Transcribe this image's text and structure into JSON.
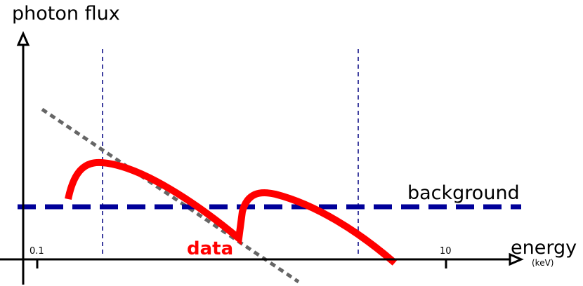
{
  "axes": {
    "y_label": "photon flux",
    "x_label": "energy",
    "x_unit": "(keV)",
    "x_ticks": [
      "0.1",
      "10"
    ]
  },
  "curves": {
    "background": "background",
    "data": "data"
  }
}
